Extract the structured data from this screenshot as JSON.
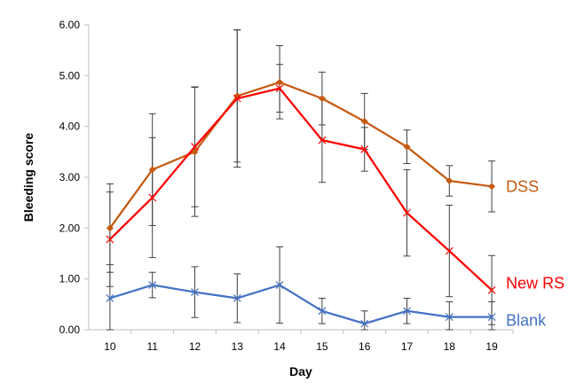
{
  "chart_data": {
    "type": "line",
    "title": "",
    "xlabel": "Day",
    "ylabel": "Bleeding score",
    "x": [
      10,
      11,
      12,
      13,
      14,
      15,
      16,
      17,
      18,
      19
    ],
    "ylim": [
      0,
      6
    ],
    "yticks": [
      "0.00",
      "1.00",
      "2.00",
      "3.00",
      "4.00",
      "5.00",
      "6.00"
    ],
    "grid": false,
    "legend": "direct labels at right end of each line",
    "series": [
      {
        "name": "DSS",
        "color": "#C55A11",
        "marker": "diamond",
        "values": [
          2.0,
          3.15,
          3.5,
          4.6,
          4.87,
          4.55,
          4.1,
          3.6,
          2.93,
          2.82
        ],
        "error": [
          0.87,
          1.1,
          1.27,
          1.3,
          0.72,
          0.52,
          0.55,
          0.33,
          0.3,
          0.5
        ]
      },
      {
        "name": "New RS",
        "color": "#FF0000",
        "marker": "x",
        "values": [
          1.78,
          2.6,
          3.6,
          4.55,
          4.75,
          3.73,
          3.55,
          2.3,
          1.55,
          0.78
        ],
        "error": [
          0.93,
          1.18,
          1.18,
          1.35,
          0.47,
          0.83,
          0.43,
          0.85,
          0.9,
          0.68
        ]
      },
      {
        "name": "Blank",
        "color": "#4472C4",
        "marker": "x",
        "values": [
          0.62,
          0.88,
          0.74,
          0.62,
          0.88,
          0.37,
          0.12,
          0.37,
          0.25,
          0.25
        ],
        "error": [
          0.66,
          0.25,
          0.5,
          0.48,
          0.75,
          0.25,
          0.25,
          0.25,
          0.3,
          0.3
        ]
      }
    ]
  }
}
